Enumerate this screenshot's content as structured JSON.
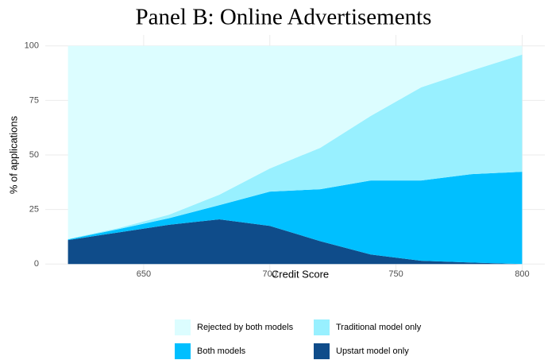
{
  "chart_data": {
    "type": "area",
    "stacked": true,
    "title": "Panel B: Online Advertisements",
    "xlabel": "Credit Score",
    "ylabel": "% of applications",
    "x": [
      620,
      640,
      660,
      680,
      700,
      720,
      740,
      760,
      780,
      800
    ],
    "series": [
      {
        "name": "Rejected by both models",
        "color": "#dcfdff",
        "values": [
          88.5,
          83.5,
          77.4,
          68.2,
          56.2,
          46.7,
          32.1,
          19,
          11.3,
          4
        ]
      },
      {
        "name": "Traditional model only",
        "color": "#98f0ff",
        "values": [
          0.2,
          0.5,
          1.6,
          4.8,
          10.6,
          19,
          29.6,
          42.7,
          47.5,
          53.7
        ]
      },
      {
        "name": "Both models",
        "color": "#00bfff",
        "values": [
          0.3,
          1.5,
          3,
          6.5,
          15.7,
          23.8,
          33.9,
          36.8,
          40.5,
          42.3
        ]
      },
      {
        "name": "Upstart model only",
        "color": "#0f4c8a",
        "values": [
          11,
          14.5,
          18,
          20.5,
          17.5,
          10.5,
          4.4,
          1.5,
          0.7,
          0
        ]
      }
    ],
    "xlim": [
      611,
      809
    ],
    "xticks": [
      650,
      700,
      750,
      800
    ],
    "ylim": [
      -5,
      105
    ],
    "yticks": [
      0,
      25,
      50,
      75,
      100
    ],
    "grid": true,
    "legend_position": "bottom"
  }
}
